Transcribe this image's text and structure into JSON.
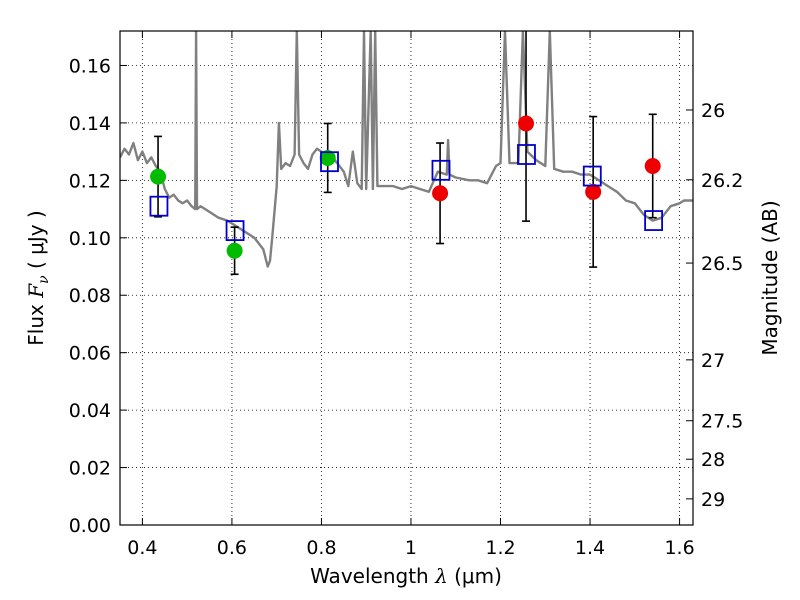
{
  "chart_data": {
    "type": "scatter",
    "xlabel": {
      "prefix": "Wavelength  ",
      "symbol": "λ",
      "unit": " (μm)"
    },
    "ylabel": {
      "prefix": "Flux  ",
      "symbol": "F",
      "subscript": "ν",
      "unit": "  ( μJy )"
    },
    "ylabel_right": "Magnitude (AB)",
    "xlim": [
      0.35,
      1.63
    ],
    "ylim": [
      0.0,
      0.172
    ],
    "x_ticks": [
      {
        "value": 0.4,
        "label": "0.4"
      },
      {
        "value": 0.6,
        "label": "0.6"
      },
      {
        "value": 0.8,
        "label": "0.8"
      },
      {
        "value": 1.0,
        "label": "1"
      },
      {
        "value": 1.2,
        "label": "1.2"
      },
      {
        "value": 1.4,
        "label": "1.4"
      },
      {
        "value": 1.6,
        "label": "1.6"
      }
    ],
    "y_ticks": [
      {
        "value": 0.0,
        "label": "0.00"
      },
      {
        "value": 0.02,
        "label": "0.02"
      },
      {
        "value": 0.04,
        "label": "0.04"
      },
      {
        "value": 0.06,
        "label": "0.06"
      },
      {
        "value": 0.08,
        "label": "0.08"
      },
      {
        "value": 0.1,
        "label": "0.10"
      },
      {
        "value": 0.12,
        "label": "0.12"
      },
      {
        "value": 0.14,
        "label": "0.14"
      },
      {
        "value": 0.16,
        "label": "0.16"
      }
    ],
    "right_ticks": [
      {
        "flux": 0.1445,
        "label": "26"
      },
      {
        "flux": 0.1202,
        "label": "26.2"
      },
      {
        "flux": 0.0912,
        "label": "26.5"
      },
      {
        "flux": 0.0575,
        "label": "27"
      },
      {
        "flux": 0.0363,
        "label": "27.5"
      },
      {
        "flux": 0.0229,
        "label": "28"
      },
      {
        "flux": 0.0091,
        "label": "29"
      }
    ],
    "grid": true,
    "colors": {
      "spectrum": "#808080",
      "green_points": "#00bb00",
      "red_points": "#ee0000",
      "model_squares": "#0000cc",
      "error_bars": "#000000"
    },
    "series": [
      {
        "marker": "circle",
        "color": "#00bb00",
        "points": [
          {
            "x": 0.435,
            "y": 0.1213,
            "err": 0.014
          },
          {
            "x": 0.606,
            "y": 0.0955,
            "err": 0.0082
          },
          {
            "x": 0.814,
            "y": 0.1278,
            "err": 0.012
          }
        ]
      },
      {
        "marker": "circle",
        "color": "#ee0000",
        "points": [
          {
            "x": 1.065,
            "y": 0.1155,
            "err": 0.0175
          },
          {
            "x": 1.257,
            "y": 0.1398,
            "err": 0.034
          },
          {
            "x": 1.407,
            "y": 0.116,
            "err": 0.0262
          },
          {
            "x": 1.54,
            "y": 0.125,
            "err": 0.018
          }
        ]
      },
      {
        "marker": "square-open",
        "color": "#0000cc",
        "points": [
          {
            "x": 0.437,
            "y": 0.111
          },
          {
            "x": 0.607,
            "y": 0.1025
          },
          {
            "x": 0.818,
            "y": 0.1265
          },
          {
            "x": 1.067,
            "y": 0.1235
          },
          {
            "x": 1.258,
            "y": 0.129
          },
          {
            "x": 1.405,
            "y": 0.1215
          },
          {
            "x": 1.542,
            "y": 0.106
          }
        ]
      }
    ],
    "spectrum": [
      [
        0.35,
        0.128
      ],
      [
        0.36,
        0.131
      ],
      [
        0.37,
        0.129
      ],
      [
        0.38,
        0.133
      ],
      [
        0.39,
        0.127
      ],
      [
        0.4,
        0.13
      ],
      [
        0.41,
        0.126
      ],
      [
        0.42,
        0.128
      ],
      [
        0.43,
        0.125
      ],
      [
        0.44,
        0.123
      ],
      [
        0.45,
        0.117
      ],
      [
        0.46,
        0.114
      ],
      [
        0.47,
        0.115
      ],
      [
        0.48,
        0.113
      ],
      [
        0.49,
        0.112
      ],
      [
        0.5,
        0.113
      ],
      [
        0.51,
        0.111
      ],
      [
        0.518,
        0.11
      ],
      [
        0.52,
        0.172
      ],
      [
        0.522,
        0.11
      ],
      [
        0.53,
        0.111
      ],
      [
        0.55,
        0.109
      ],
      [
        0.57,
        0.107
      ],
      [
        0.59,
        0.106
      ],
      [
        0.61,
        0.104
      ],
      [
        0.63,
        0.102
      ],
      [
        0.65,
        0.1
      ],
      [
        0.67,
        0.096
      ],
      [
        0.68,
        0.09
      ],
      [
        0.685,
        0.092
      ],
      [
        0.69,
        0.1
      ],
      [
        0.7,
        0.118
      ],
      [
        0.705,
        0.14
      ],
      [
        0.71,
        0.124
      ],
      [
        0.72,
        0.126
      ],
      [
        0.73,
        0.125
      ],
      [
        0.74,
        0.129
      ],
      [
        0.745,
        0.172
      ],
      [
        0.75,
        0.129
      ],
      [
        0.76,
        0.126
      ],
      [
        0.77,
        0.124
      ],
      [
        0.78,
        0.129
      ],
      [
        0.79,
        0.131
      ],
      [
        0.8,
        0.13
      ],
      [
        0.81,
        0.129
      ],
      [
        0.82,
        0.128
      ],
      [
        0.83,
        0.127
      ],
      [
        0.84,
        0.125
      ],
      [
        0.85,
        0.123
      ],
      [
        0.86,
        0.118
      ],
      [
        0.87,
        0.13
      ],
      [
        0.88,
        0.119
      ],
      [
        0.89,
        0.117
      ],
      [
        0.895,
        0.172
      ],
      [
        0.9,
        0.117
      ],
      [
        0.91,
        0.172
      ],
      [
        0.915,
        0.117
      ],
      [
        0.92,
        0.172
      ],
      [
        0.925,
        0.118
      ],
      [
        0.94,
        0.118
      ],
      [
        0.96,
        0.118
      ],
      [
        0.98,
        0.117
      ],
      [
        1.0,
        0.118
      ],
      [
        1.02,
        0.117
      ],
      [
        1.04,
        0.116
      ],
      [
        1.06,
        0.123
      ],
      [
        1.08,
        0.122
      ],
      [
        1.083,
        0.134
      ],
      [
        1.086,
        0.122
      ],
      [
        1.1,
        0.121
      ],
      [
        1.13,
        0.12
      ],
      [
        1.15,
        0.12
      ],
      [
        1.17,
        0.119
      ],
      [
        1.18,
        0.122
      ],
      [
        1.19,
        0.125
      ],
      [
        1.2,
        0.126
      ],
      [
        1.21,
        0.172
      ],
      [
        1.22,
        0.126
      ],
      [
        1.24,
        0.126
      ],
      [
        1.25,
        0.172
      ],
      [
        1.26,
        0.13
      ],
      [
        1.28,
        0.127
      ],
      [
        1.3,
        0.125
      ],
      [
        1.31,
        0.172
      ],
      [
        1.32,
        0.124
      ],
      [
        1.34,
        0.123
      ],
      [
        1.36,
        0.123
      ],
      [
        1.38,
        0.122
      ],
      [
        1.4,
        0.122
      ],
      [
        1.42,
        0.12
      ],
      [
        1.44,
        0.118
      ],
      [
        1.46,
        0.116
      ],
      [
        1.48,
        0.113
      ],
      [
        1.5,
        0.112
      ],
      [
        1.52,
        0.108
      ],
      [
        1.54,
        0.106
      ],
      [
        1.56,
        0.107
      ],
      [
        1.58,
        0.111
      ],
      [
        1.6,
        0.112
      ],
      [
        1.61,
        0.113
      ],
      [
        1.63,
        0.113
      ]
    ]
  }
}
